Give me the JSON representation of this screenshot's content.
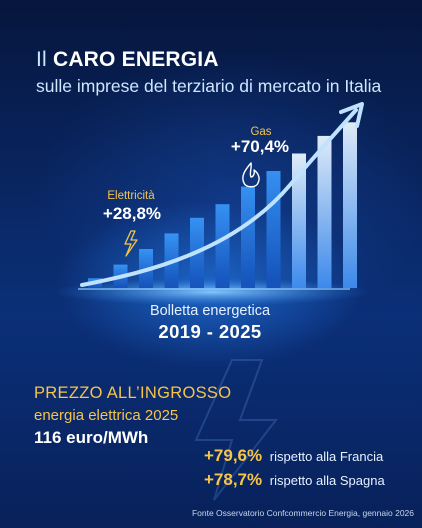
{
  "title": {
    "prefix": "Il",
    "bold": "CARO ENERGIA",
    "subtitle": "sulle imprese del terziario di mercato in Italia"
  },
  "chart_data": {
    "type": "bar",
    "bar_levels": [
      0.05,
      0.12,
      0.2,
      0.28,
      0.36,
      0.43,
      0.52,
      0.6,
      0.69,
      0.78,
      0.85
    ],
    "annotations": {
      "gas": {
        "label": "Gas",
        "value": "+70,4%"
      },
      "electricity": {
        "label": "Elettricità",
        "value": "+28,8%"
      }
    },
    "caption": "Bolletta energetica",
    "period": "2019 - 2025"
  },
  "wholesale": {
    "title": "PREZZO ALL’INGROSSO",
    "subtitle": "energia elettrica 2025",
    "value": "116 euro/MWh",
    "comparisons": [
      {
        "pct": "+79,6%",
        "text": "rispetto alla Francia"
      },
      {
        "pct": "+78,7%",
        "text": "rispetto alla Spagna"
      }
    ]
  },
  "source": "Fonte Osservatorio Confcommercio Energia, gennaio 2026",
  "colors": {
    "background": "#0a2a6b",
    "accent_yellow": "#f6c54a",
    "bar_blue": "#2f86ff",
    "arrow": "#bfe2ff"
  }
}
